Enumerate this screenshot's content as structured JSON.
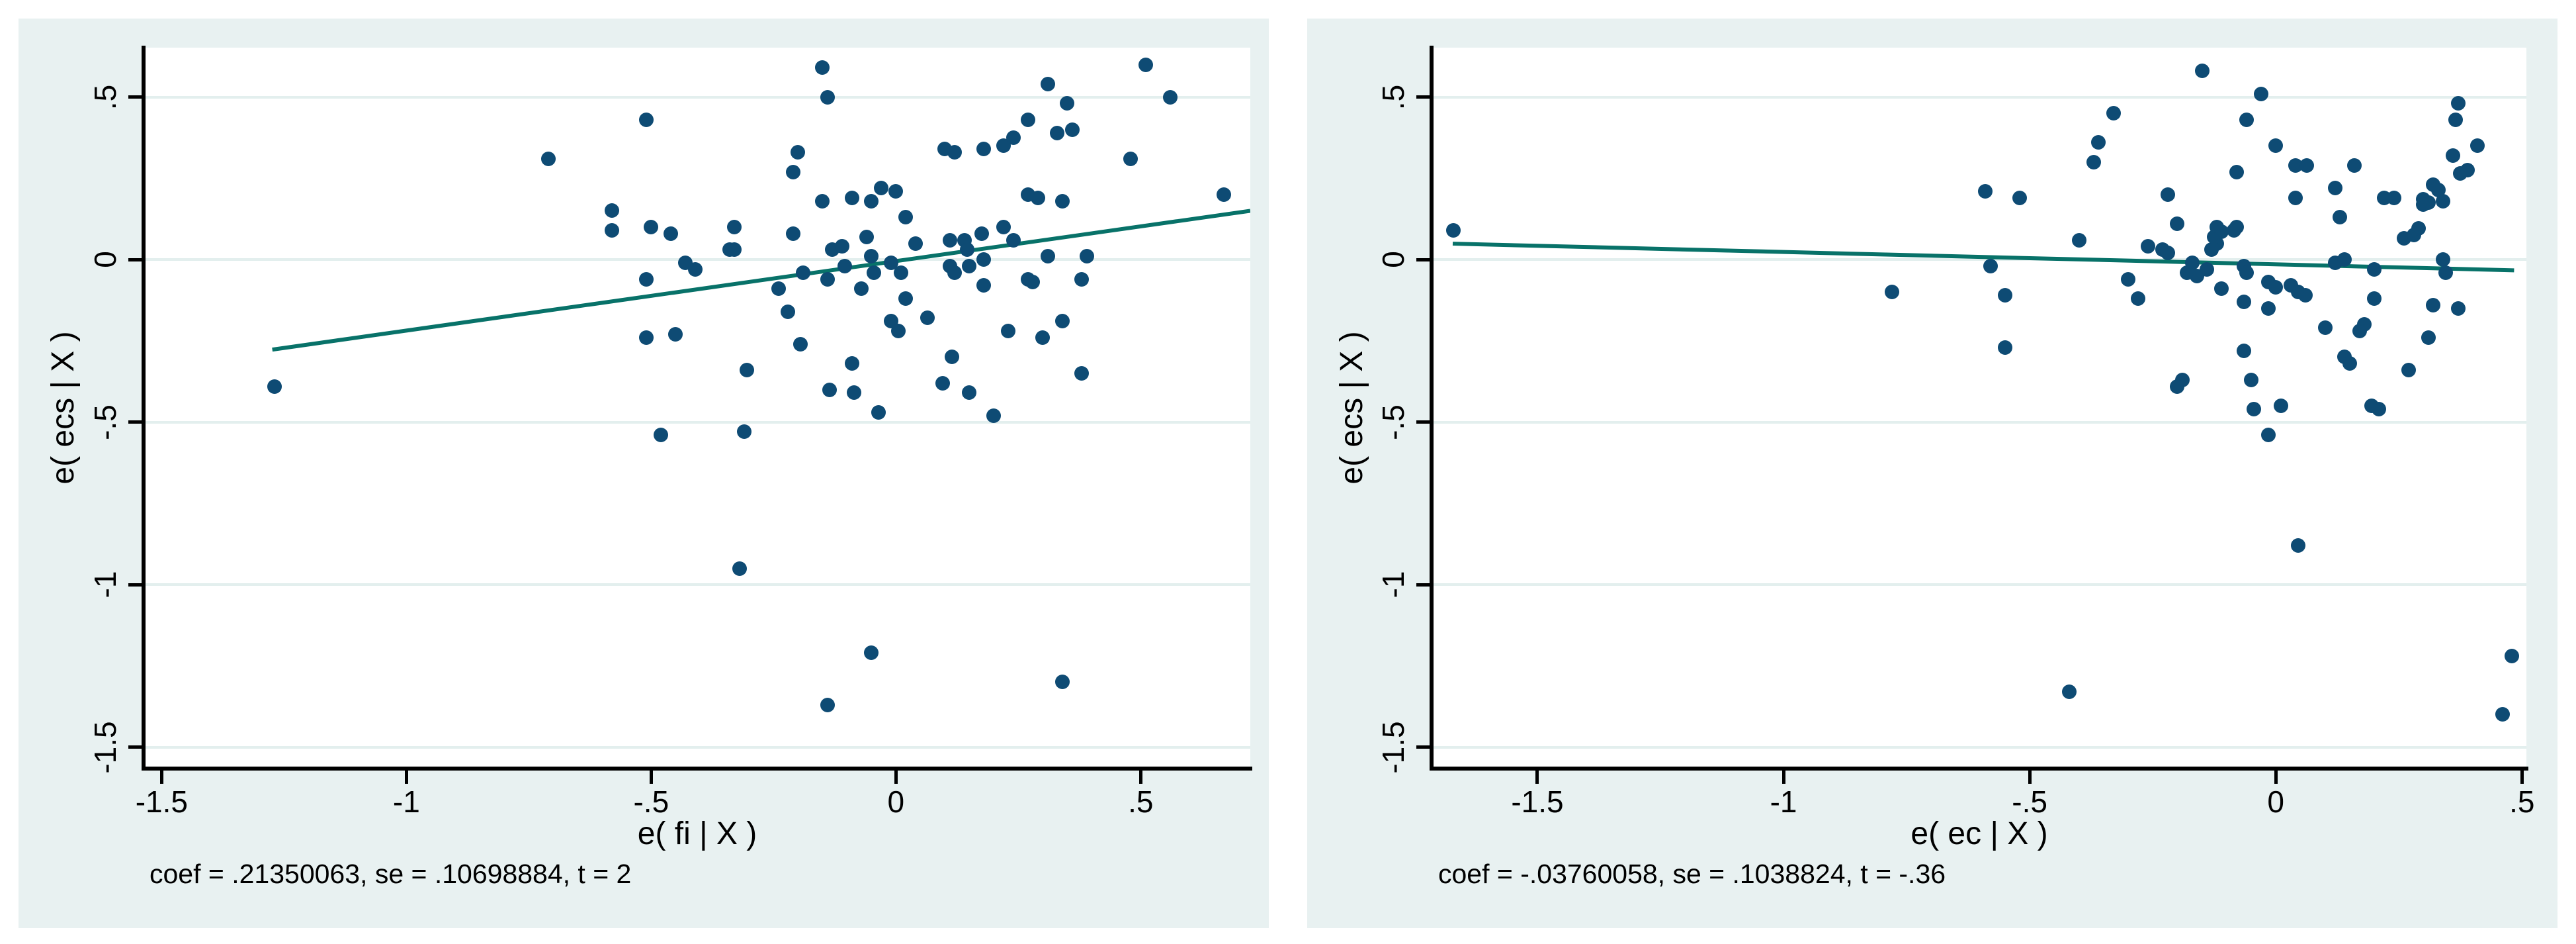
{
  "figure": {
    "kind": "stata-added-variable-plots",
    "background": "#ffffff",
    "panel_background": "#e8f1f1",
    "colors": {
      "point": "#0e4b74",
      "fit_line": "#087269",
      "gridline": "#e3efee",
      "axis": "#000000",
      "text": "#000000"
    }
  },
  "panels": [
    {
      "y_title": "e( ecs | X )",
      "x_title": "e( fi | X )",
      "note": "coef = .21350063, se = .10698884, t = 2"
    },
    {
      "y_title": "e( ecs | X )",
      "x_title": "e( ec | X )",
      "note": "coef = -.03760058, se = .1038824, t = -.36"
    }
  ],
  "chart_data": [
    {
      "type": "scatter",
      "title": "",
      "xlabel": "e( fi | X )",
      "ylabel": "e( ecs | X )",
      "note": "coef = .21350063, se = .10698884, t = 2",
      "coef": 0.21350063,
      "se": 0.10698884,
      "t": 2,
      "xlim": [
        -1.537,
        0.724
      ],
      "ylim": [
        -1.566,
        0.652
      ],
      "x_ticks": [
        -1.5,
        -1,
        -0.5,
        0,
        0.5
      ],
      "x_tick_labels": [
        "-1.5",
        "-1",
        "-.5",
        "0",
        ".5"
      ],
      "y_ticks": [
        0.5,
        0,
        -0.5,
        -1,
        -1.5
      ],
      "y_tick_labels": [
        ".5",
        "0",
        "-.5",
        "-1",
        "-1.5"
      ],
      "grid": "horizontal",
      "legend": "none",
      "fit_line": {
        "x1": -1.274,
        "y1": -0.277,
        "x2": 0.724,
        "y2": 0.15
      },
      "points": [
        [
          -1.27,
          -0.39
        ],
        [
          -0.71,
          0.31
        ],
        [
          -0.51,
          0.43
        ],
        [
          -0.58,
          0.15
        ],
        [
          -0.58,
          0.09
        ],
        [
          -0.5,
          0.1
        ],
        [
          -0.46,
          0.08
        ],
        [
          -0.51,
          -0.06
        ],
        [
          -0.43,
          -0.01
        ],
        [
          -0.41,
          -0.03
        ],
        [
          -0.34,
          0.03
        ],
        [
          -0.51,
          -0.24
        ],
        [
          -0.45,
          -0.23
        ],
        [
          -0.48,
          -0.54
        ],
        [
          -0.15,
          0.59
        ],
        [
          -0.14,
          0.5
        ],
        [
          -0.2,
          0.33
        ],
        [
          -0.21,
          0.27
        ],
        [
          -0.15,
          0.18
        ],
        [
          -0.09,
          0.19
        ],
        [
          -0.05,
          0.18
        ],
        [
          -0.03,
          0.22
        ],
        [
          0.0,
          0.21
        ],
        [
          0.02,
          0.13
        ],
        [
          0.1,
          0.34
        ],
        [
          0.12,
          0.33
        ],
        [
          0.18,
          0.34
        ],
        [
          0.22,
          0.35
        ],
        [
          0.24,
          0.375
        ],
        [
          0.27,
          0.43
        ],
        [
          0.31,
          0.54
        ],
        [
          0.35,
          0.48
        ],
        [
          0.33,
          0.39
        ],
        [
          0.36,
          0.4
        ],
        [
          0.51,
          0.6
        ],
        [
          0.56,
          0.5
        ],
        [
          0.48,
          0.31
        ],
        [
          0.67,
          0.2
        ],
        [
          -0.33,
          0.1
        ],
        [
          -0.33,
          0.03
        ],
        [
          -0.21,
          0.08
        ],
        [
          -0.13,
          0.03
        ],
        [
          -0.11,
          0.04
        ],
        [
          -0.19,
          -0.04
        ],
        [
          -0.14,
          -0.06
        ],
        [
          -0.105,
          -0.02
        ],
        [
          -0.06,
          0.07
        ],
        [
          -0.05,
          0.01
        ],
        [
          -0.045,
          -0.04
        ],
        [
          -0.07,
          -0.09
        ],
        [
          -0.01,
          -0.01
        ],
        [
          0.01,
          -0.04
        ],
        [
          0.02,
          -0.12
        ],
        [
          0.04,
          0.05
        ],
        [
          0.11,
          0.06
        ],
        [
          0.14,
          0.06
        ],
        [
          0.11,
          -0.02
        ],
        [
          0.12,
          -0.04
        ],
        [
          0.145,
          0.03
        ],
        [
          0.15,
          -0.02
        ],
        [
          0.175,
          0.08
        ],
        [
          0.18,
          0.0
        ],
        [
          0.18,
          -0.08
        ],
        [
          0.22,
          0.1
        ],
        [
          0.24,
          0.06
        ],
        [
          0.27,
          0.2
        ],
        [
          0.29,
          0.19
        ],
        [
          0.31,
          0.01
        ],
        [
          0.27,
          -0.06
        ],
        [
          0.28,
          -0.07
        ],
        [
          0.34,
          0.18
        ],
        [
          0.39,
          0.01
        ],
        [
          0.38,
          -0.06
        ],
        [
          0.23,
          -0.22
        ],
        [
          0.3,
          -0.24
        ],
        [
          0.34,
          -0.19
        ],
        [
          0.38,
          -0.35
        ],
        [
          0.115,
          -0.3
        ],
        [
          0.095,
          -0.38
        ],
        [
          0.15,
          -0.41
        ],
        [
          0.2,
          -0.48
        ],
        [
          -0.035,
          -0.47
        ],
        [
          -0.09,
          -0.32
        ],
        [
          -0.135,
          -0.4
        ],
        [
          -0.085,
          -0.41
        ],
        [
          -0.195,
          -0.26
        ],
        [
          -0.305,
          -0.34
        ],
        [
          -0.31,
          -0.53
        ],
        [
          -0.22,
          -0.16
        ],
        [
          -0.24,
          -0.09
        ],
        [
          -0.01,
          -0.19
        ],
        [
          0.005,
          -0.22
        ],
        [
          0.065,
          -0.18
        ],
        [
          -0.32,
          -0.95
        ],
        [
          -0.05,
          -1.21
        ],
        [
          -0.14,
          -1.37
        ],
        [
          0.34,
          -1.3
        ]
      ]
    },
    {
      "type": "scatter",
      "title": "",
      "xlabel": "e( ec | X )",
      "ylabel": "e( ecs | X )",
      "note": "coef = -.03760058, se = .1038824, t = -.36",
      "coef": -0.03760058,
      "se": 0.1038824,
      "t": -0.36,
      "xlim": [
        -1.715,
        0.509
      ],
      "ylim": [
        -1.566,
        0.652
      ],
      "x_ticks": [
        -1.5,
        -1,
        -0.5,
        0,
        0.5
      ],
      "x_tick_labels": [
        "-1.5",
        "-1",
        "-.5",
        "0",
        ".5"
      ],
      "y_ticks": [
        0.5,
        0,
        -0.5,
        -1,
        -1.5
      ],
      "y_tick_labels": [
        ".5",
        "0",
        "-.5",
        "-1",
        "-1.5"
      ],
      "grid": "horizontal",
      "legend": "none",
      "fit_line": {
        "x1": -1.672,
        "y1": 0.049,
        "x2": 0.484,
        "y2": -0.033
      },
      "points": [
        [
          -1.67,
          0.09
        ],
        [
          -0.59,
          0.21
        ],
        [
          -0.58,
          -0.02
        ],
        [
          -0.78,
          -0.1
        ],
        [
          -0.55,
          -0.11
        ],
        [
          -0.55,
          -0.27
        ],
        [
          -0.15,
          0.58
        ],
        [
          -0.03,
          0.51
        ],
        [
          -0.33,
          0.45
        ],
        [
          0.37,
          0.48
        ],
        [
          0.365,
          0.43
        ],
        [
          -0.06,
          0.43
        ],
        [
          -0.36,
          0.36
        ],
        [
          -0.37,
          0.3
        ],
        [
          0.0,
          0.35
        ],
        [
          -0.08,
          0.27
        ],
        [
          0.04,
          0.29
        ],
        [
          0.063,
          0.29
        ],
        [
          0.16,
          0.29
        ],
        [
          0.12,
          0.22
        ],
        [
          -0.52,
          0.19
        ],
        [
          0.04,
          0.19
        ],
        [
          0.13,
          0.13
        ],
        [
          0.24,
          0.19
        ],
        [
          -0.22,
          0.2
        ],
        [
          -0.2,
          0.11
        ],
        [
          -0.4,
          0.06
        ],
        [
          -0.12,
          0.1
        ],
        [
          -0.085,
          0.09
        ],
        [
          -0.12,
          0.05
        ],
        [
          -0.26,
          0.04
        ],
        [
          -0.23,
          0.03
        ],
        [
          -0.22,
          0.02
        ],
        [
          -0.17,
          -0.01
        ],
        [
          -0.18,
          -0.04
        ],
        [
          -0.16,
          -0.05
        ],
        [
          -0.14,
          -0.03
        ],
        [
          -0.13,
          0.03
        ],
        [
          -0.125,
          0.07
        ],
        [
          -0.11,
          0.085
        ],
        [
          -0.08,
          0.1
        ],
        [
          -0.3,
          -0.06
        ],
        [
          -0.28,
          -0.12
        ],
        [
          -0.11,
          -0.09
        ],
        [
          -0.065,
          -0.02
        ],
        [
          -0.06,
          -0.04
        ],
        [
          -0.065,
          -0.13
        ],
        [
          -0.015,
          -0.07
        ],
        [
          0.0,
          -0.085
        ],
        [
          0.03,
          -0.08
        ],
        [
          0.045,
          -0.1
        ],
        [
          0.06,
          -0.11
        ],
        [
          -0.015,
          -0.15
        ],
        [
          -0.065,
          -0.28
        ],
        [
          0.1,
          -0.21
        ],
        [
          0.14,
          -0.3
        ],
        [
          0.15,
          -0.32
        ],
        [
          0.12,
          -0.01
        ],
        [
          0.14,
          0.0
        ],
        [
          0.2,
          -0.03
        ],
        [
          0.2,
          -0.12
        ],
        [
          0.18,
          -0.2
        ],
        [
          0.17,
          -0.22
        ],
        [
          0.26,
          0.065
        ],
        [
          0.28,
          0.075
        ],
        [
          0.29,
          0.095
        ],
        [
          0.31,
          -0.24
        ],
        [
          0.27,
          -0.34
        ],
        [
          0.33,
          0.215
        ],
        [
          0.31,
          0.175
        ],
        [
          0.34,
          0.0
        ],
        [
          0.345,
          -0.04
        ],
        [
          0.32,
          -0.14
        ],
        [
          0.37,
          -0.15
        ],
        [
          0.36,
          0.32
        ],
        [
          0.41,
          0.35
        ],
        [
          0.375,
          0.265
        ],
        [
          0.39,
          0.275
        ],
        [
          0.32,
          0.23
        ],
        [
          0.3,
          0.185
        ],
        [
          0.3,
          0.17
        ],
        [
          0.34,
          0.18
        ],
        [
          0.22,
          0.19
        ],
        [
          -0.19,
          -0.37
        ],
        [
          -0.2,
          -0.39
        ],
        [
          -0.05,
          -0.37
        ],
        [
          -0.045,
          -0.46
        ],
        [
          0.01,
          -0.45
        ],
        [
          -0.015,
          -0.54
        ],
        [
          0.195,
          -0.45
        ],
        [
          0.21,
          -0.46
        ],
        [
          0.045,
          -0.88
        ],
        [
          -0.42,
          -1.33
        ],
        [
          0.48,
          -1.22
        ],
        [
          0.46,
          -1.4
        ]
      ]
    }
  ]
}
